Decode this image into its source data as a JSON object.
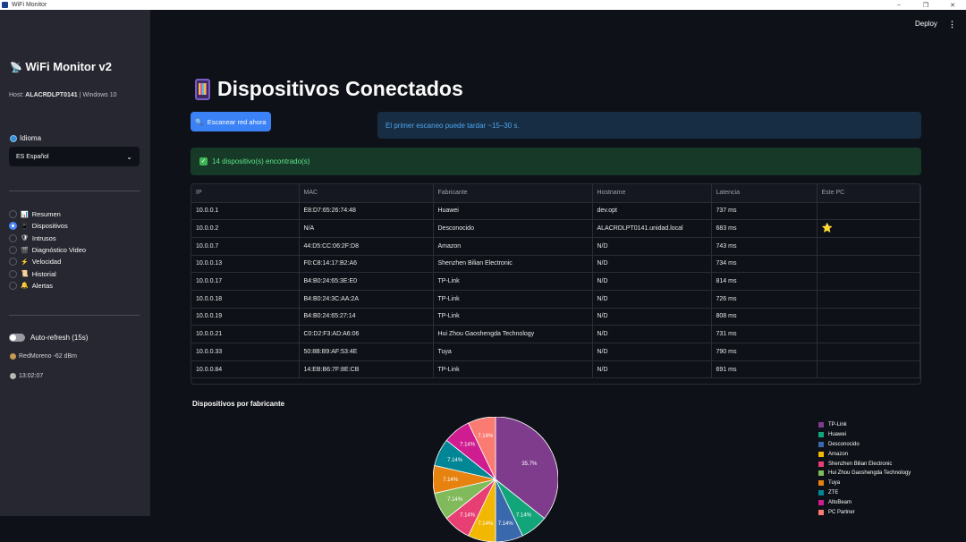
{
  "window": {
    "title": "WiFi Monitor",
    "minimize": "–",
    "maximize": "❐",
    "close": "✕"
  },
  "sidebar": {
    "app_title": "WiFi Monitor v2",
    "host_label": "Host:",
    "host_value": "ALACRDLPT0141",
    "os": "| Windows 10",
    "language_label": "Idioma",
    "language_value": "ES Español",
    "nav": [
      {
        "label": "Resumen",
        "icon": "📊",
        "selected": false
      },
      {
        "label": "Dispositivos",
        "icon": "📱",
        "selected": true
      },
      {
        "label": "Intrusos",
        "icon": "🛡",
        "selected": false
      },
      {
        "label": "Diagnóstico Video",
        "icon": "🎬",
        "selected": false
      },
      {
        "label": "Velocidad",
        "icon": "⚡",
        "selected": false
      },
      {
        "label": "Historial",
        "icon": "📜",
        "selected": false
      },
      {
        "label": "Alertas",
        "icon": "🔔",
        "selected": false
      }
    ],
    "auto_refresh_label": "Auto-refresh (15s)",
    "auto_refresh_on": false,
    "signal": "RedMoreno -62 dBm",
    "time": "13:02:07"
  },
  "header": {
    "deploy": "Deploy",
    "menu": "⋮"
  },
  "main": {
    "title": "Dispositivos Conectados",
    "scan_button": "Escanear red ahora",
    "info": "El primer escaneo puede tardar ~15–30 s.",
    "success": "14 dispositivo(s) encontrado(s)",
    "columns": [
      "IP",
      "MAC",
      "Fabricante",
      "Hostname",
      "Latencia",
      "Este PC"
    ],
    "rows": [
      [
        "10.0.0.1",
        "E8:D7:65:26:74:48",
        "Huawei",
        "dev.opt",
        "737 ms",
        ""
      ],
      [
        "10.0.0.2",
        "N/A",
        "Desconocido",
        "ALACRDLPT0141.unidad.local",
        "683 ms",
        "⭐"
      ],
      [
        "10.0.0.7",
        "44:D5:CC:06:2F:D8",
        "Amazon",
        "N/D",
        "743 ms",
        ""
      ],
      [
        "10.0.0.13",
        "F0:C8:14:17:B2:A6",
        "Shenzhen Bilian Electronic",
        "N/D",
        "734 ms",
        ""
      ],
      [
        "10.0.0.17",
        "B4:B0:24:65:3E:E0",
        "TP-Link",
        "N/D",
        "814 ms",
        ""
      ],
      [
        "10.0.0.18",
        "B4:B0:24:3C:AA:2A",
        "TP-Link",
        "N/D",
        "726 ms",
        ""
      ],
      [
        "10.0.0.19",
        "B4:B0:24:65:27:14",
        "TP-Link",
        "N/D",
        "808 ms",
        ""
      ],
      [
        "10.0.0.21",
        "C0:D2:F3:AD:A6:06",
        "Hui Zhou Gaoshengda Technology",
        "N/D",
        "731 ms",
        ""
      ],
      [
        "10.0.0.33",
        "50:8B:B9:AF:53:4E",
        "Tuya",
        "N/D",
        "790 ms",
        ""
      ],
      [
        "10.0.0.84",
        "14:EB:B6:7F:8E:CB",
        "TP-Link",
        "N/D",
        "691 ms",
        ""
      ]
    ]
  },
  "chart_data": {
    "type": "pie",
    "title": "Dispositivos por fabricante",
    "categories": [
      "TP-Link",
      "Huawei",
      "Desconocido",
      "Amazon",
      "Shenzhen Bilian Electronic",
      "Hui Zhou Gaoshengda Technology",
      "Tuya",
      "ZTE",
      "AltoBeam",
      "PC Partner"
    ],
    "values": [
      5,
      1,
      1,
      1,
      1,
      1,
      1,
      1,
      1,
      1
    ],
    "labels": [
      "35.7%",
      "7.14%",
      "7.14%",
      "7.14%",
      "7.14%",
      "7.14%",
      "7.14%",
      "7.14%",
      "7.14%",
      "7.14%"
    ],
    "colors": [
      "#7f3c8d",
      "#11a579",
      "#3969ac",
      "#f2b701",
      "#e73f74",
      "#80ba5a",
      "#e68310",
      "#008695",
      "#cf1c90",
      "#f97b72"
    ],
    "legend": "right"
  }
}
